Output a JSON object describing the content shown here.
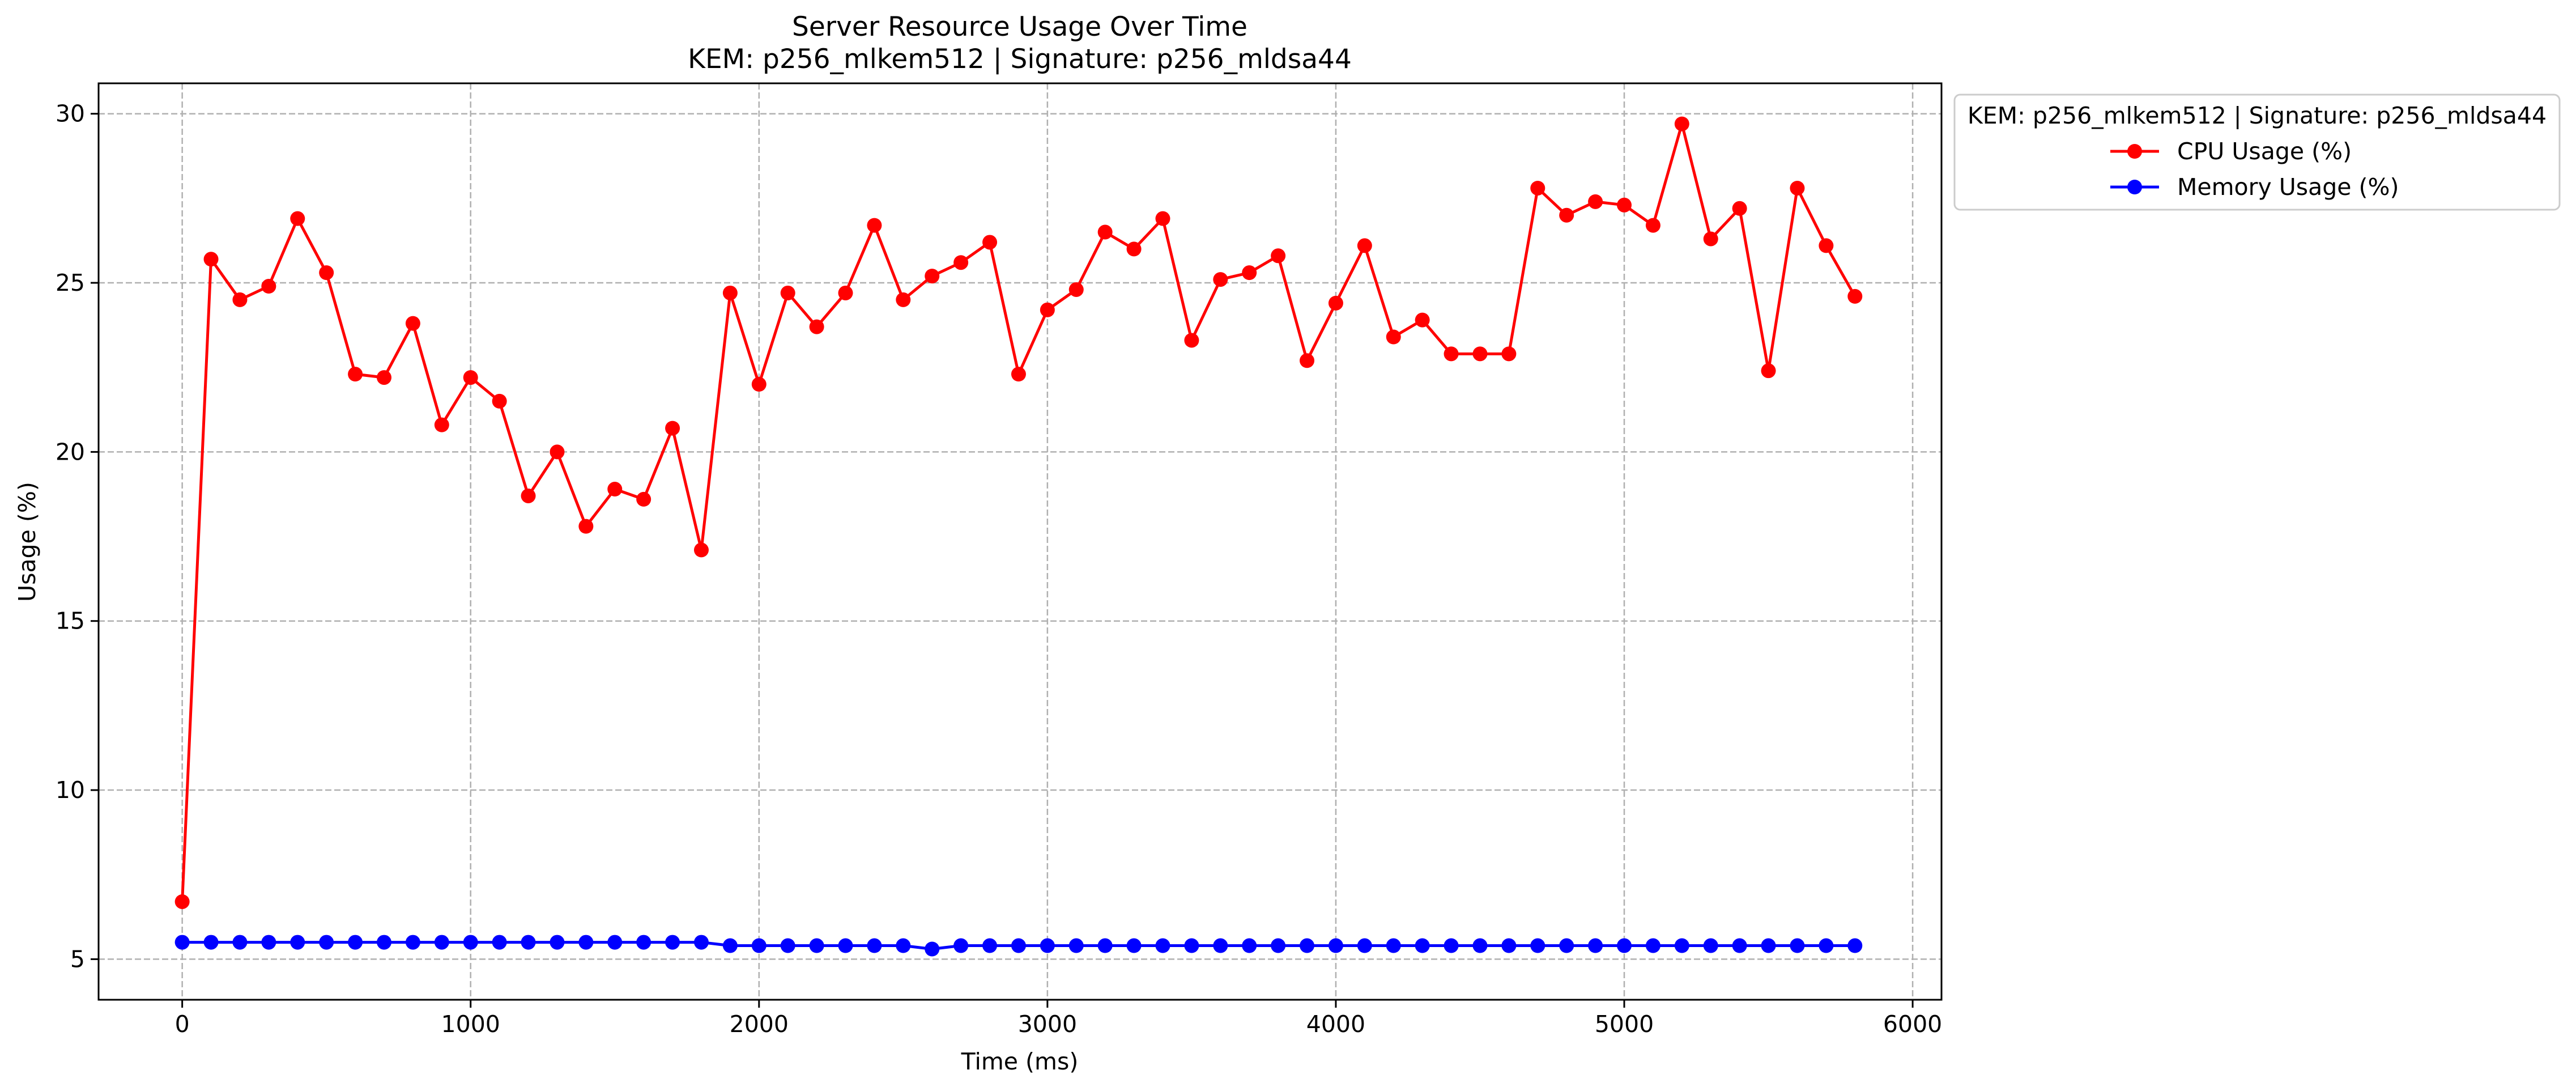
{
  "chart_data": {
    "type": "line",
    "title_line1": "Server Resource Usage Over Time",
    "title_line2": "KEM: p256_mlkem512 | Signature: p256_mldsa44",
    "xlabel": "Time (ms)",
    "ylabel": "Usage (%)",
    "xlim": [
      -290,
      6100
    ],
    "ylim": [
      3.8,
      30.9
    ],
    "xticks": [
      0,
      1000,
      2000,
      3000,
      4000,
      5000,
      6000
    ],
    "yticks": [
      5,
      10,
      15,
      20,
      25,
      30
    ],
    "grid": true,
    "legend": {
      "title": "KEM: p256_mlkem512 | Signature: p256_mldsa44",
      "placement": "outside-top-right"
    },
    "x": [
      0,
      100,
      200,
      300,
      400,
      500,
      600,
      700,
      800,
      900,
      1000,
      1100,
      1200,
      1300,
      1400,
      1500,
      1600,
      1700,
      1800,
      1900,
      2000,
      2100,
      2200,
      2300,
      2400,
      2500,
      2600,
      2700,
      2800,
      2900,
      3000,
      3100,
      3200,
      3300,
      3400,
      3500,
      3600,
      3700,
      3800,
      3900,
      4000,
      4100,
      4200,
      4300,
      4400,
      4500,
      4600,
      4700,
      4800,
      4900,
      5000,
      5100,
      5200,
      5300,
      5400,
      5500,
      5600,
      5700,
      5800
    ],
    "series": [
      {
        "name": "CPU Usage (%)",
        "color": "#ff0000",
        "values": [
          6.7,
          25.7,
          24.5,
          24.9,
          26.9,
          25.3,
          22.3,
          22.2,
          23.8,
          20.8,
          22.2,
          21.5,
          18.7,
          20.0,
          17.8,
          18.9,
          18.6,
          20.7,
          17.1,
          24.7,
          22.0,
          24.7,
          23.7,
          24.7,
          26.7,
          24.5,
          25.2,
          25.6,
          26.2,
          22.3,
          24.2,
          24.8,
          26.5,
          26.0,
          26.9,
          23.3,
          25.1,
          25.3,
          25.8,
          22.7,
          24.4,
          26.1,
          23.4,
          23.9,
          22.9,
          22.9,
          22.9,
          27.8,
          27.0,
          27.4,
          27.3,
          26.7,
          29.7,
          26.3,
          27.2,
          22.4,
          27.8,
          26.1,
          24.6
        ]
      },
      {
        "name": "Memory Usage (%)",
        "color": "#0000ff",
        "values": [
          5.5,
          5.5,
          5.5,
          5.5,
          5.5,
          5.5,
          5.5,
          5.5,
          5.5,
          5.5,
          5.5,
          5.5,
          5.5,
          5.5,
          5.5,
          5.5,
          5.5,
          5.5,
          5.5,
          5.4,
          5.4,
          5.4,
          5.4,
          5.4,
          5.4,
          5.4,
          5.3,
          5.4,
          5.4,
          5.4,
          5.4,
          5.4,
          5.4,
          5.4,
          5.4,
          5.4,
          5.4,
          5.4,
          5.4,
          5.4,
          5.4,
          5.4,
          5.4,
          5.4,
          5.4,
          5.4,
          5.4,
          5.4,
          5.4,
          5.4,
          5.4,
          5.4,
          5.4,
          5.4,
          5.4,
          5.4,
          5.4,
          5.4,
          5.4
        ]
      }
    ]
  }
}
